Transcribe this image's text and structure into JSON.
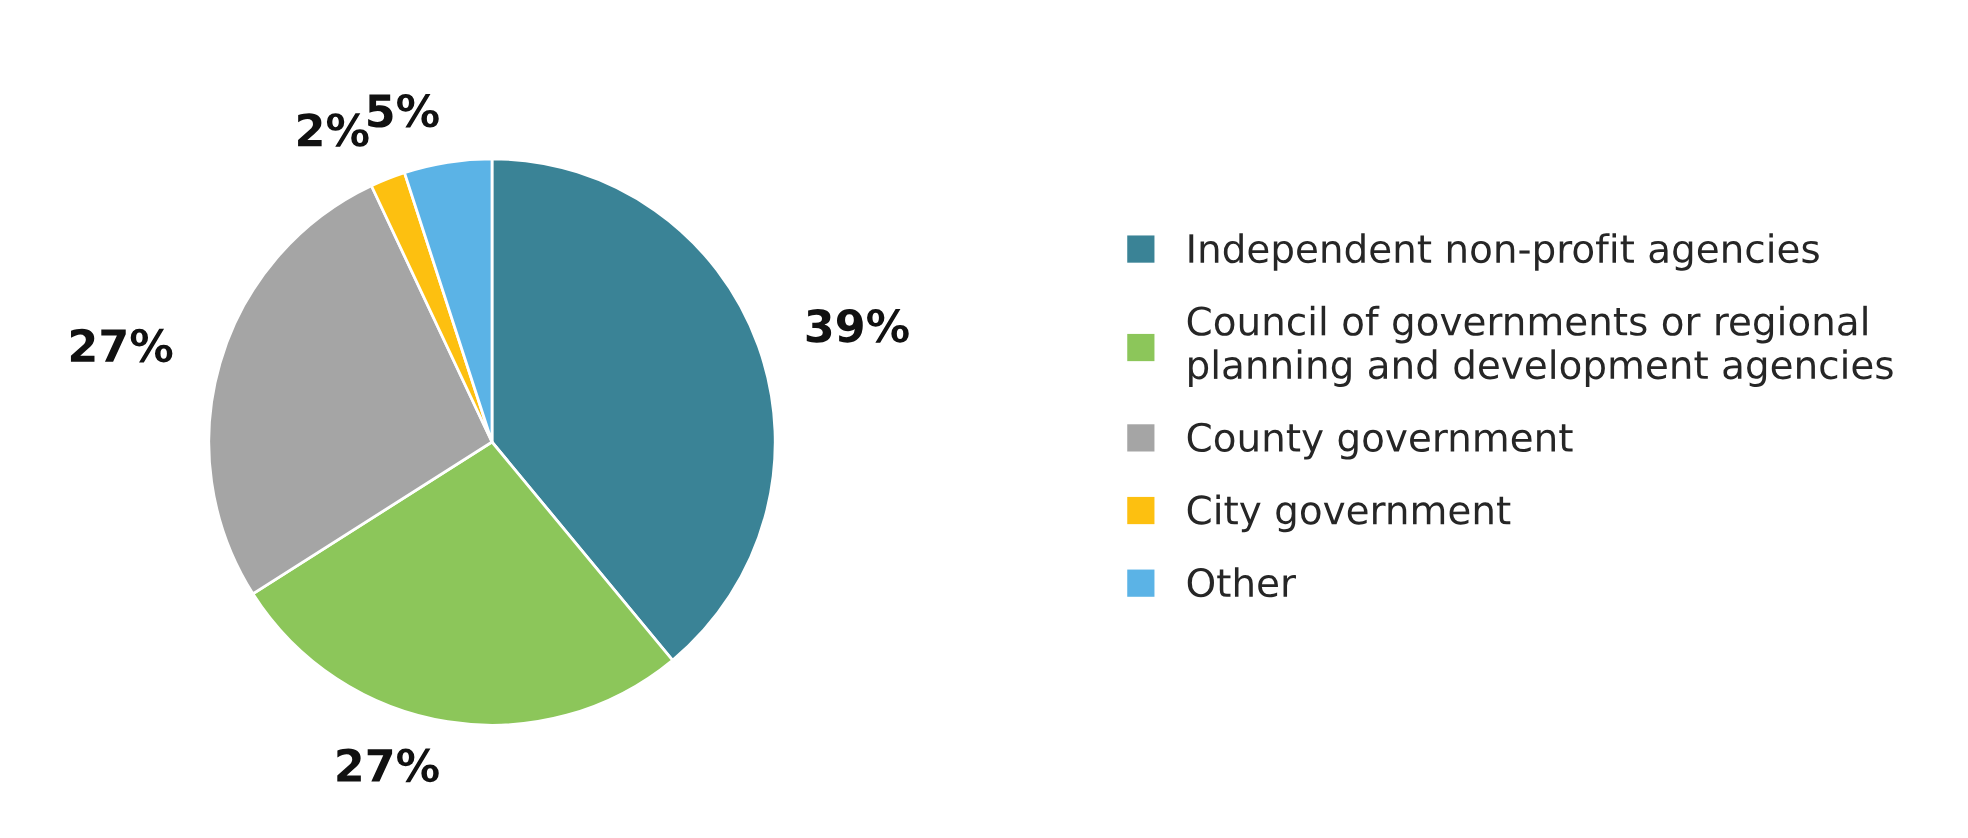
{
  "chart_data": {
    "type": "pie",
    "categories": [
      "Independent non-profit agencies",
      "Council of governments or regional planning and development agencies",
      "County government",
      "City government",
      "Other"
    ],
    "values": [
      39,
      27,
      27,
      2,
      5
    ],
    "value_labels": [
      "39%",
      "27%",
      "27%",
      "2%",
      "5%"
    ],
    "colors": [
      "#3a8396",
      "#8cc65a",
      "#a5a5a5",
      "#fdc010",
      "#5bb3e6"
    ],
    "legend": "right"
  }
}
